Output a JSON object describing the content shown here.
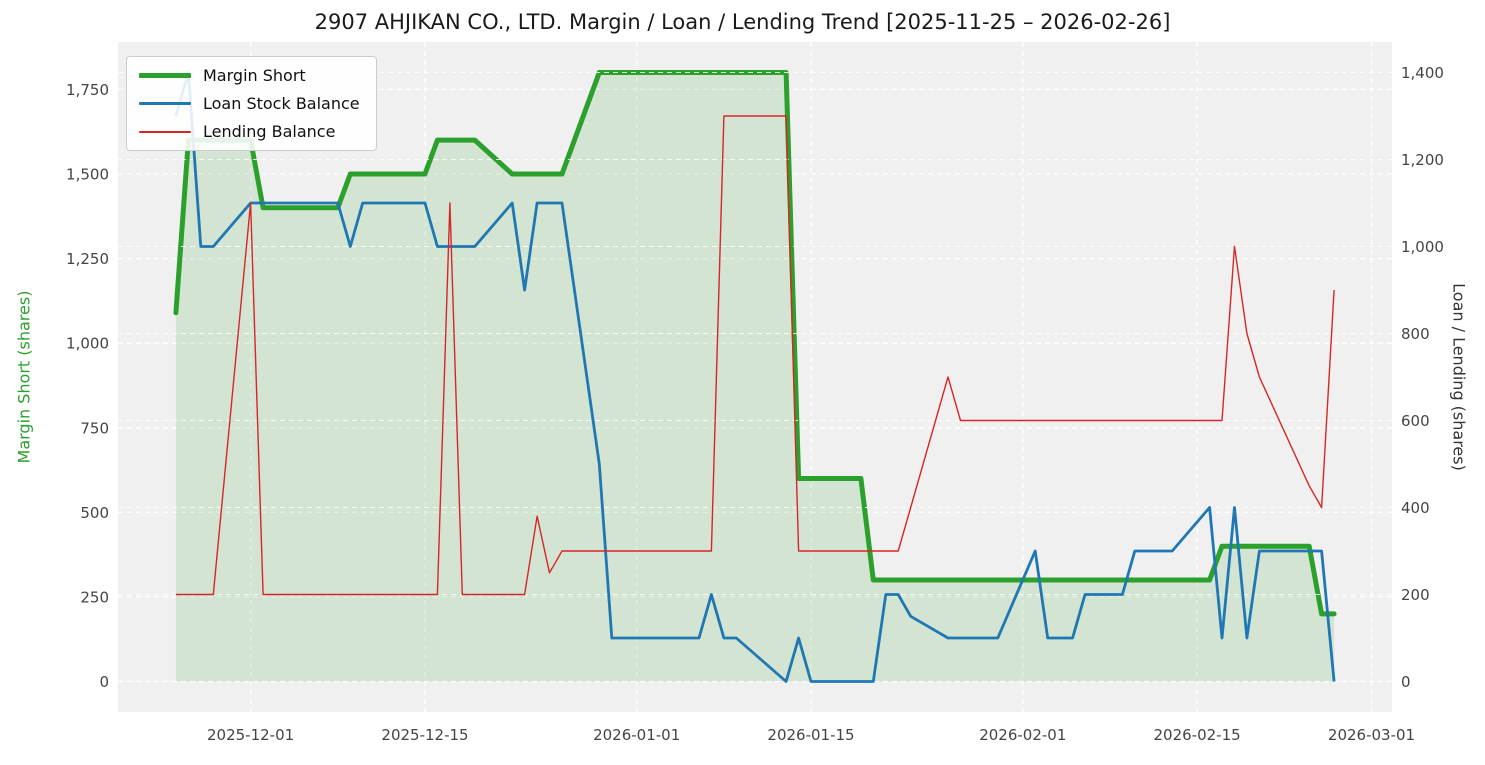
{
  "title": "2907 AHJIKAN CO., LTD. Margin / Loan / Lending Trend [2025-11-25 – 2026-02-26]",
  "chart_data": {
    "type": "line",
    "x": [
      "2025-11-25",
      "2025-11-26",
      "2025-11-27",
      "2025-11-28",
      "2025-12-01",
      "2025-12-02",
      "2025-12-03",
      "2025-12-04",
      "2025-12-05",
      "2025-12-08",
      "2025-12-09",
      "2025-12-10",
      "2025-12-11",
      "2025-12-12",
      "2025-12-15",
      "2025-12-16",
      "2025-12-17",
      "2025-12-18",
      "2025-12-19",
      "2025-12-22",
      "2025-12-23",
      "2025-12-24",
      "2025-12-25",
      "2025-12-26",
      "2025-12-29",
      "2025-12-30",
      "2026-01-05",
      "2026-01-06",
      "2026-01-07",
      "2026-01-08",
      "2026-01-09",
      "2026-01-13",
      "2026-01-14",
      "2026-01-15",
      "2026-01-16",
      "2026-01-19",
      "2026-01-20",
      "2026-01-21",
      "2026-01-22",
      "2026-01-23",
      "2026-01-26",
      "2026-01-27",
      "2026-01-28",
      "2026-01-29",
      "2026-01-30",
      "2026-02-02",
      "2026-02-03",
      "2026-02-04",
      "2026-02-05",
      "2026-02-06",
      "2026-02-09",
      "2026-02-10",
      "2026-02-12",
      "2026-02-13",
      "2026-02-16",
      "2026-02-17",
      "2026-02-18",
      "2026-02-19",
      "2026-02-20",
      "2026-02-24",
      "2026-02-25",
      "2026-02-26"
    ],
    "series": [
      {
        "name": "Margin Short",
        "axis": "left",
        "color": "#2ca02c",
        "width": 5,
        "fill": true,
        "values": [
          1090,
          1600,
          1600,
          1600,
          1600,
          1400,
          1400,
          1400,
          1400,
          1400,
          1500,
          1500,
          1500,
          1500,
          1500,
          1600,
          1600,
          1600,
          1600,
          1500,
          1500,
          1500,
          1500,
          1500,
          1800,
          1800,
          1800,
          1800,
          1800,
          1800,
          1800,
          1800,
          600,
          600,
          600,
          600,
          300,
          300,
          300,
          300,
          300,
          300,
          300,
          300,
          300,
          300,
          300,
          300,
          300,
          300,
          300,
          300,
          300,
          300,
          300,
          400,
          400,
          400,
          400,
          400,
          200,
          200
        ]
      },
      {
        "name": "Loan Stock Balance",
        "axis": "right",
        "color": "#1f77b4",
        "width": 2.8,
        "fill": false,
        "values": [
          1300,
          1400,
          1000,
          1000,
          1100,
          1100,
          1100,
          1100,
          1100,
          1100,
          1000,
          1100,
          1100,
          1100,
          1100,
          1000,
          1000,
          1000,
          1000,
          1100,
          900,
          1100,
          1100,
          1100,
          500,
          100,
          100,
          100,
          200,
          100,
          100,
          0,
          100,
          0,
          0,
          0,
          0,
          200,
          200,
          150,
          100,
          100,
          100,
          100,
          100,
          300,
          100,
          100,
          100,
          200,
          200,
          300,
          300,
          300,
          400,
          100,
          400,
          100,
          300,
          300,
          300,
          0
        ]
      },
      {
        "name": "Lending Balance",
        "axis": "right",
        "color": "#d62728",
        "width": 1.4,
        "fill": false,
        "values": [
          200,
          200,
          200,
          200,
          1100,
          200,
          200,
          200,
          200,
          200,
          200,
          200,
          200,
          200,
          200,
          200,
          1100,
          200,
          200,
          200,
          200,
          380,
          250,
          300,
          300,
          300,
          300,
          300,
          300,
          1300,
          1300,
          1300,
          300,
          300,
          300,
          300,
          300,
          300,
          300,
          400,
          700,
          600,
          600,
          600,
          600,
          600,
          600,
          600,
          600,
          600,
          600,
          600,
          600,
          600,
          600,
          600,
          1000,
          800,
          700,
          450,
          400,
          900
        ]
      }
    ],
    "y_left": {
      "label": "Margin Short (shares)",
      "color": "#2ca02c",
      "ticks": [
        0,
        250,
        500,
        750,
        1000,
        1250,
        1500,
        1750
      ],
      "range": [
        -90,
        1890
      ]
    },
    "y_right": {
      "label": "Loan / Lending (shares)",
      "color": "#333333",
      "ticks": [
        0,
        200,
        400,
        600,
        800,
        1000,
        1200,
        1400
      ],
      "range": [
        -70,
        1470
      ]
    },
    "x_ticks": [
      "2025-12-01",
      "2025-12-15",
      "2026-01-01",
      "2026-01-15",
      "2026-02-01",
      "2026-02-15",
      "2026-03-01"
    ],
    "x_pad_days": 4.65,
    "background": "#f0f0f0",
    "grid": {
      "color": "#ffffff",
      "dash": "5 4"
    },
    "legend_position": "top-left",
    "tick_label_color": "#444444"
  }
}
